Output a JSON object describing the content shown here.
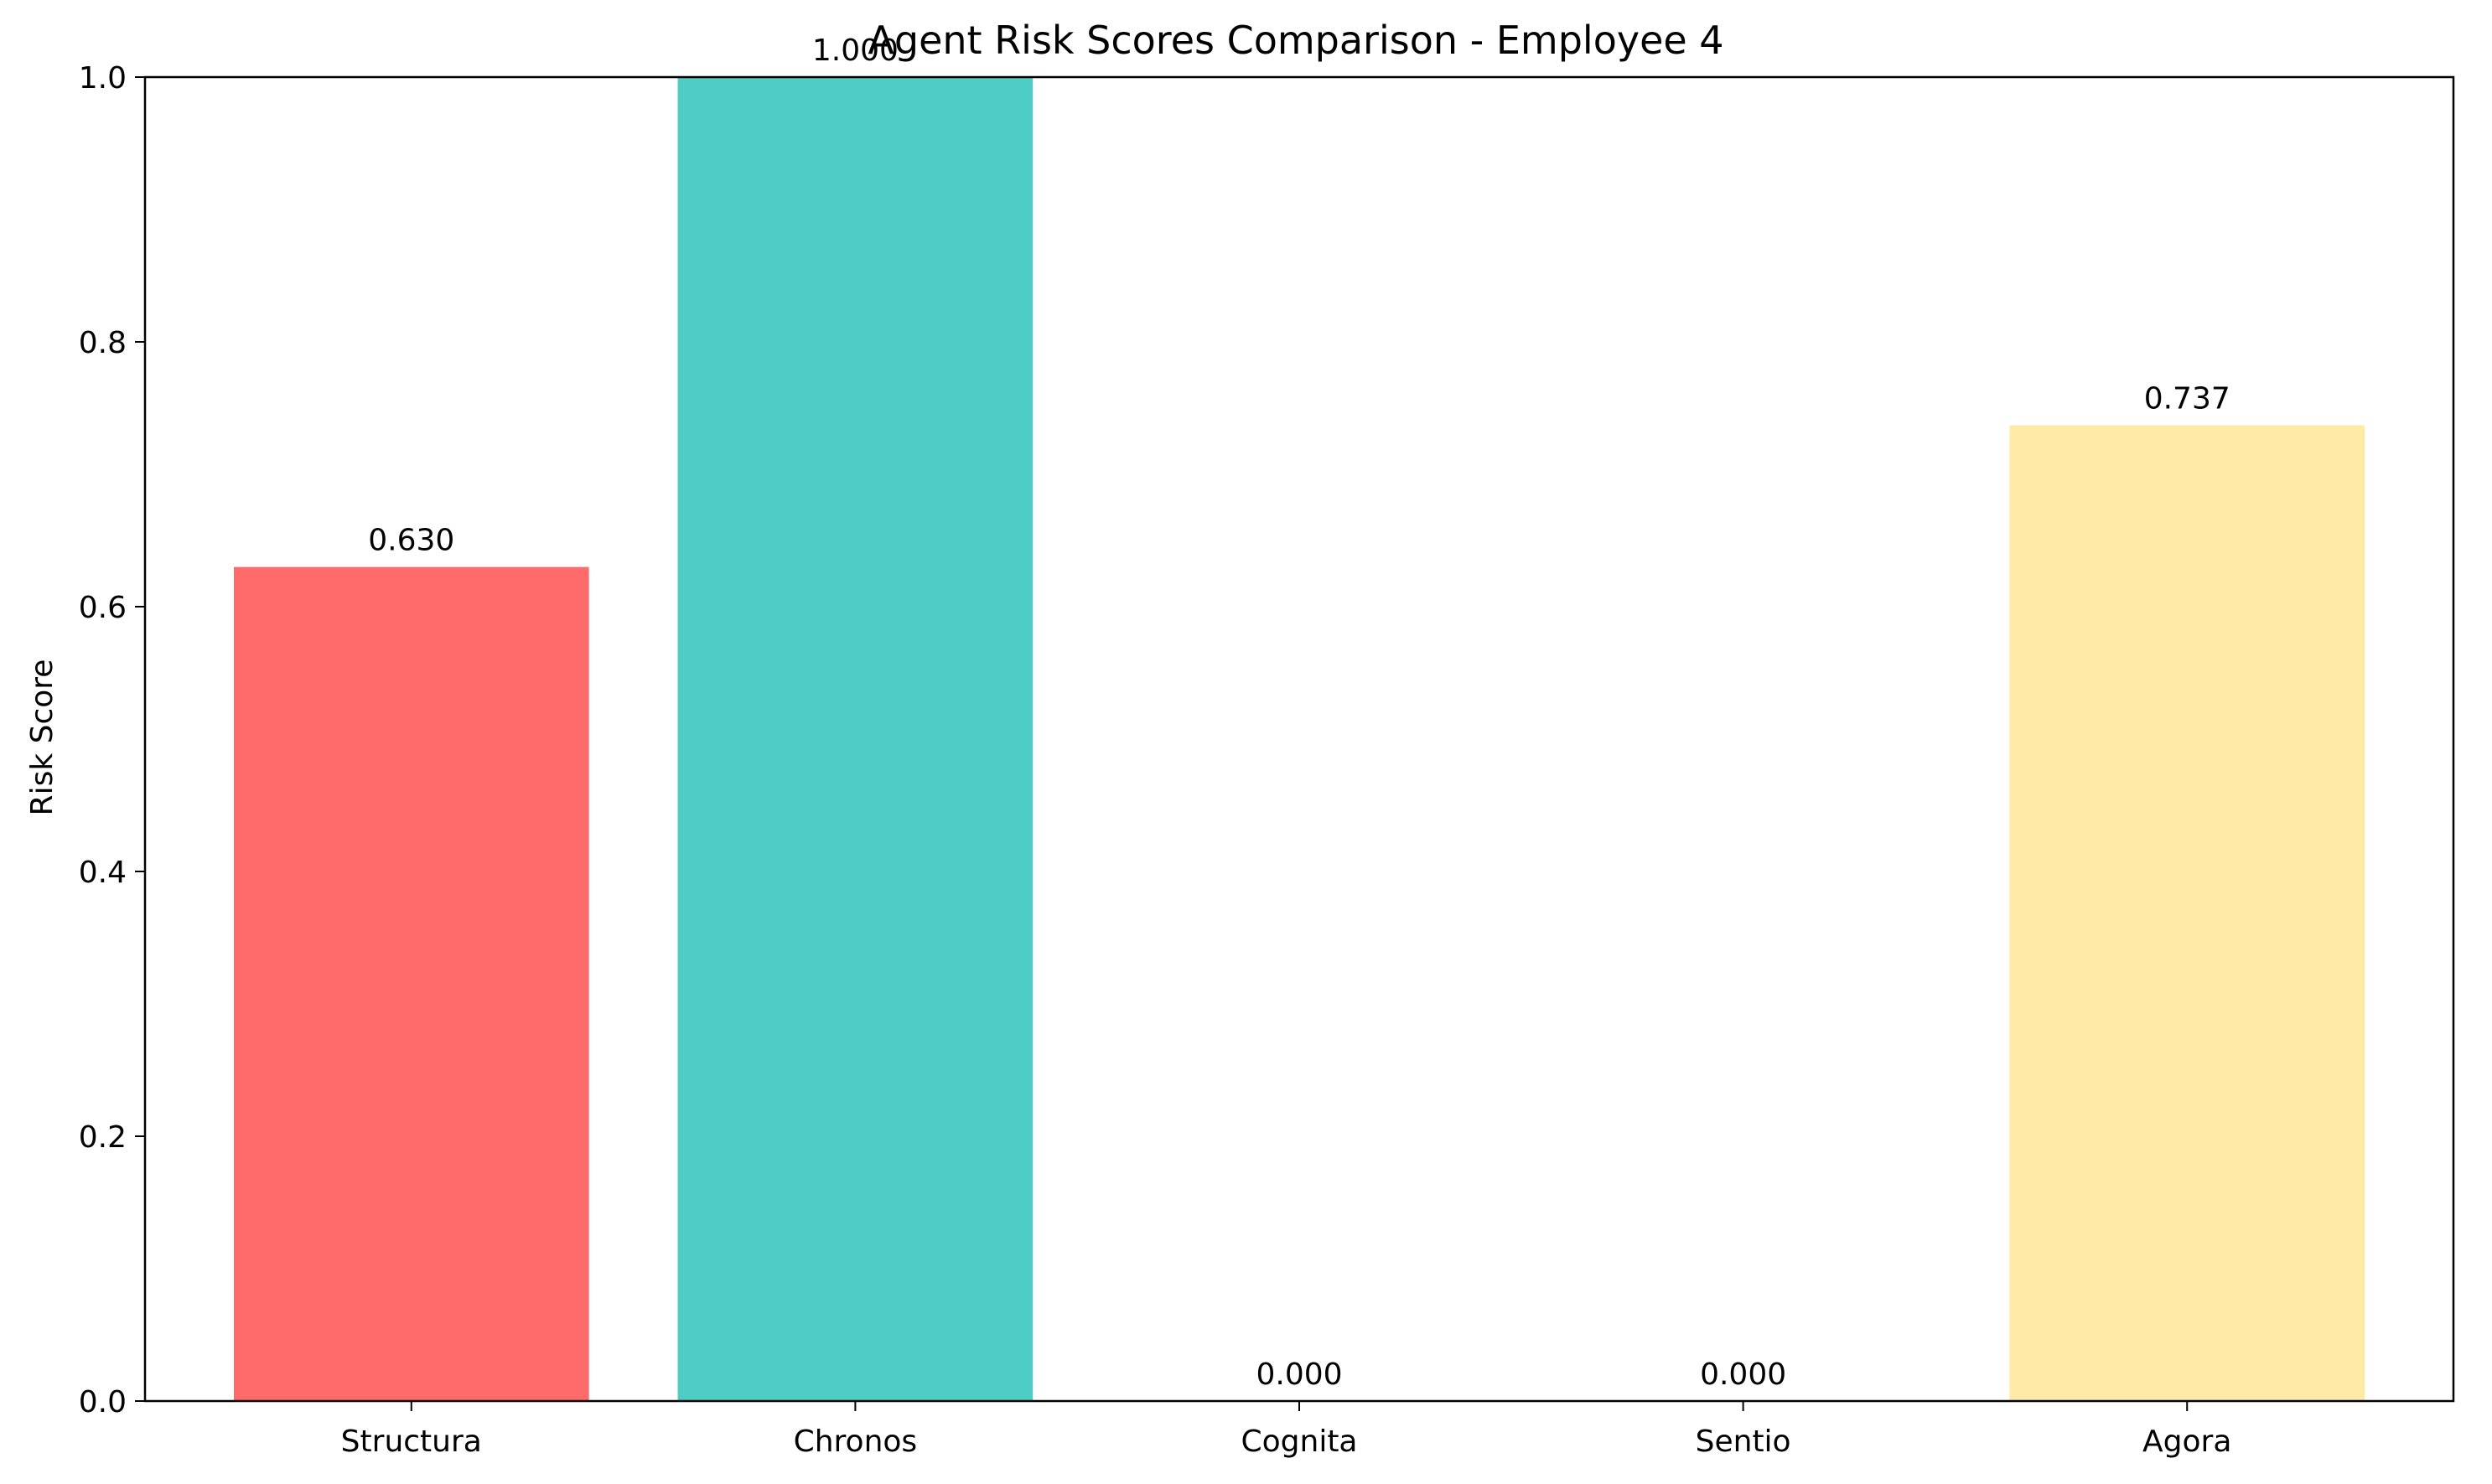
{
  "chart_data": {
    "type": "bar",
    "title": "Agent Risk Scores Comparison - Employee 4",
    "xlabel": "",
    "ylabel": "Risk Score",
    "categories": [
      "Structura",
      "Chronos",
      "Cognita",
      "Sentio",
      "Agora"
    ],
    "values": [
      0.63,
      1.0,
      0.0,
      0.0,
      0.737
    ],
    "value_labels": [
      "0.630",
      "1.000",
      "0.000",
      "0.000",
      "0.737"
    ],
    "colors": [
      "#ff6b6b",
      "#4ecdc4",
      "#45b7d1",
      "#96ceb4",
      "#ffeaa7"
    ],
    "ylim": [
      0,
      1.0
    ],
    "yticks": [
      0.0,
      0.2,
      0.4,
      0.6,
      0.8,
      1.0
    ],
    "ytick_labels": [
      "0.0",
      "0.2",
      "0.4",
      "0.6",
      "0.8",
      "1.0"
    ],
    "grid": false,
    "legend": "none"
  }
}
